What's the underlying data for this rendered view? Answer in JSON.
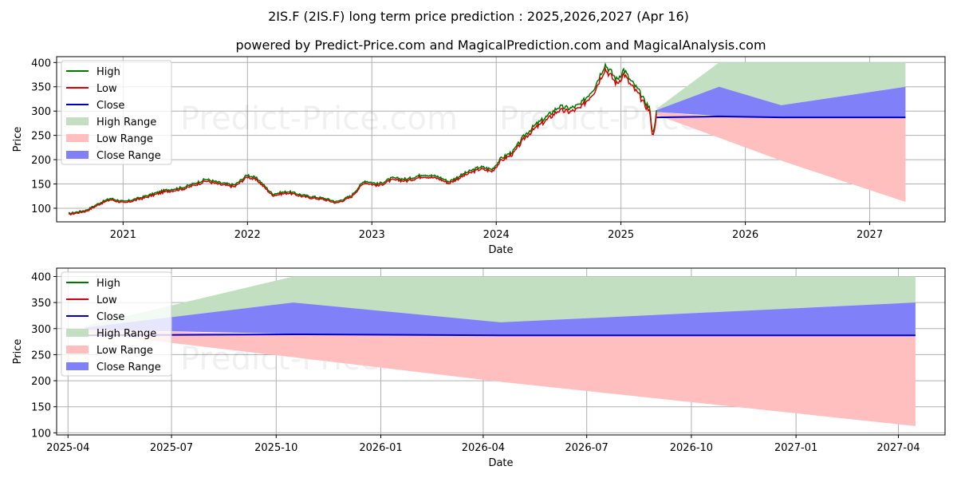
{
  "title": "2IS.F (2IS.F) long term price prediction : 2025,2026,2027 (Apr 16)",
  "subtitle": "powered by Predict-Price.com and MagicalPrediction.com and MagicalAnalysis.com",
  "watermark": "Predict-Price.com",
  "colors": {
    "high": "#007700",
    "low": "#dd0000",
    "close": "#0000cc",
    "high_range": "#c2dfc2",
    "low_range": "#ffbfbf",
    "close_range": "#8080f8"
  },
  "legend": [
    {
      "label": "High",
      "kind": "line",
      "color_key": "high"
    },
    {
      "label": "Low",
      "kind": "line",
      "color_key": "low"
    },
    {
      "label": "Close",
      "kind": "line",
      "color_key": "close"
    },
    {
      "label": "High Range",
      "kind": "patch",
      "color_key": "high_range"
    },
    {
      "label": "Low Range",
      "kind": "patch",
      "color_key": "low_range"
    },
    {
      "label": "Close Range",
      "kind": "patch",
      "color_key": "close_range"
    }
  ],
  "chart_data": [
    {
      "type": "line",
      "xlabel": "Date",
      "ylabel": "Price",
      "x_ticks": [
        "2021",
        "2022",
        "2023",
        "2024",
        "2025",
        "2026",
        "2027"
      ],
      "y_ticks": [
        100,
        150,
        200,
        250,
        300,
        350,
        400
      ],
      "xlim": [
        "2020-06-20",
        "2027-08-10"
      ],
      "ylim": [
        72,
        412
      ],
      "grid": true,
      "legend_position": "upper left",
      "history_keypoints": [
        [
          "2020-07-25",
          88
        ],
        [
          "2020-09-15",
          95
        ],
        [
          "2020-10-25",
          110
        ],
        [
          "2020-11-25",
          119
        ],
        [
          "2021-01-05",
          112
        ],
        [
          "2021-03-01",
          122
        ],
        [
          "2021-05-01",
          135
        ],
        [
          "2021-07-01",
          142
        ],
        [
          "2021-09-01",
          158
        ],
        [
          "2021-10-15",
          150
        ],
        [
          "2021-11-25",
          146
        ],
        [
          "2022-01-01",
          167
        ],
        [
          "2022-02-01",
          158
        ],
        [
          "2022-03-15",
          128
        ],
        [
          "2022-05-01",
          133
        ],
        [
          "2022-06-15",
          125
        ],
        [
          "2022-08-15",
          119
        ],
        [
          "2022-09-20",
          112
        ],
        [
          "2022-11-01",
          124
        ],
        [
          "2022-12-10",
          155
        ],
        [
          "2023-01-20",
          148
        ],
        [
          "2023-03-01",
          160
        ],
        [
          "2023-04-15",
          158
        ],
        [
          "2023-06-01",
          168
        ],
        [
          "2023-07-15",
          163
        ],
        [
          "2023-08-15",
          153
        ],
        [
          "2023-10-01",
          170
        ],
        [
          "2023-11-15",
          183
        ],
        [
          "2023-12-20",
          178
        ],
        [
          "2024-01-15",
          200
        ],
        [
          "2024-02-20",
          215
        ],
        [
          "2024-03-25",
          248
        ],
        [
          "2024-04-25",
          268
        ],
        [
          "2024-06-01",
          287
        ],
        [
          "2024-07-01",
          305
        ],
        [
          "2024-08-05",
          302
        ],
        [
          "2024-09-05",
          310
        ],
        [
          "2024-10-15",
          345
        ],
        [
          "2024-11-15",
          392
        ],
        [
          "2024-12-01",
          378
        ],
        [
          "2024-12-20",
          360
        ],
        [
          "2025-01-10",
          382
        ],
        [
          "2025-01-25",
          362
        ],
        [
          "2025-02-20",
          340
        ],
        [
          "2025-03-10",
          318
        ],
        [
          "2025-03-25",
          305
        ],
        [
          "2025-04-05",
          248
        ],
        [
          "2025-04-16",
          300
        ]
      ],
      "forecast": {
        "dates": [
          "2025-04-16",
          "2025-10-16",
          "2026-04-16",
          "2027-04-16"
        ],
        "high_range": {
          "upper": [
            305,
            400,
            400,
            400
          ],
          "lower": [
            300,
            310,
            312,
            350
          ]
        },
        "close_range": {
          "upper": [
            302,
            350,
            312,
            350
          ],
          "lower": [
            298,
            290,
            288,
            288
          ]
        },
        "low_range": {
          "upper": [
            298,
            288,
            287,
            287
          ],
          "lower": [
            292,
            245,
            198,
            113
          ]
        },
        "close": [
          287,
          289,
          287,
          287
        ]
      }
    },
    {
      "type": "area",
      "xlabel": "Date",
      "ylabel": "Price",
      "x_ticks": [
        "2025-04",
        "2025-07",
        "2025-10",
        "2026-01",
        "2026-04",
        "2026-07",
        "2026-10",
        "2027-01",
        "2027-04"
      ],
      "y_ticks": [
        100,
        150,
        200,
        250,
        300,
        350,
        400
      ],
      "xlim": [
        "2025-03-22",
        "2027-05-12"
      ],
      "ylim": [
        96,
        416
      ],
      "grid": true,
      "legend_position": "upper left",
      "forecast": {
        "dates": [
          "2025-04-16",
          "2025-10-16",
          "2026-04-16",
          "2027-04-16"
        ],
        "high_range": {
          "upper": [
            305,
            400,
            400,
            400
          ],
          "lower": [
            300,
            310,
            312,
            350
          ]
        },
        "close_range": {
          "upper": [
            302,
            350,
            312,
            350
          ],
          "lower": [
            298,
            290,
            288,
            288
          ]
        },
        "low_range": {
          "upper": [
            298,
            288,
            287,
            287
          ],
          "lower": [
            292,
            245,
            198,
            113
          ]
        },
        "close": [
          287,
          289,
          287,
          287
        ]
      }
    }
  ]
}
